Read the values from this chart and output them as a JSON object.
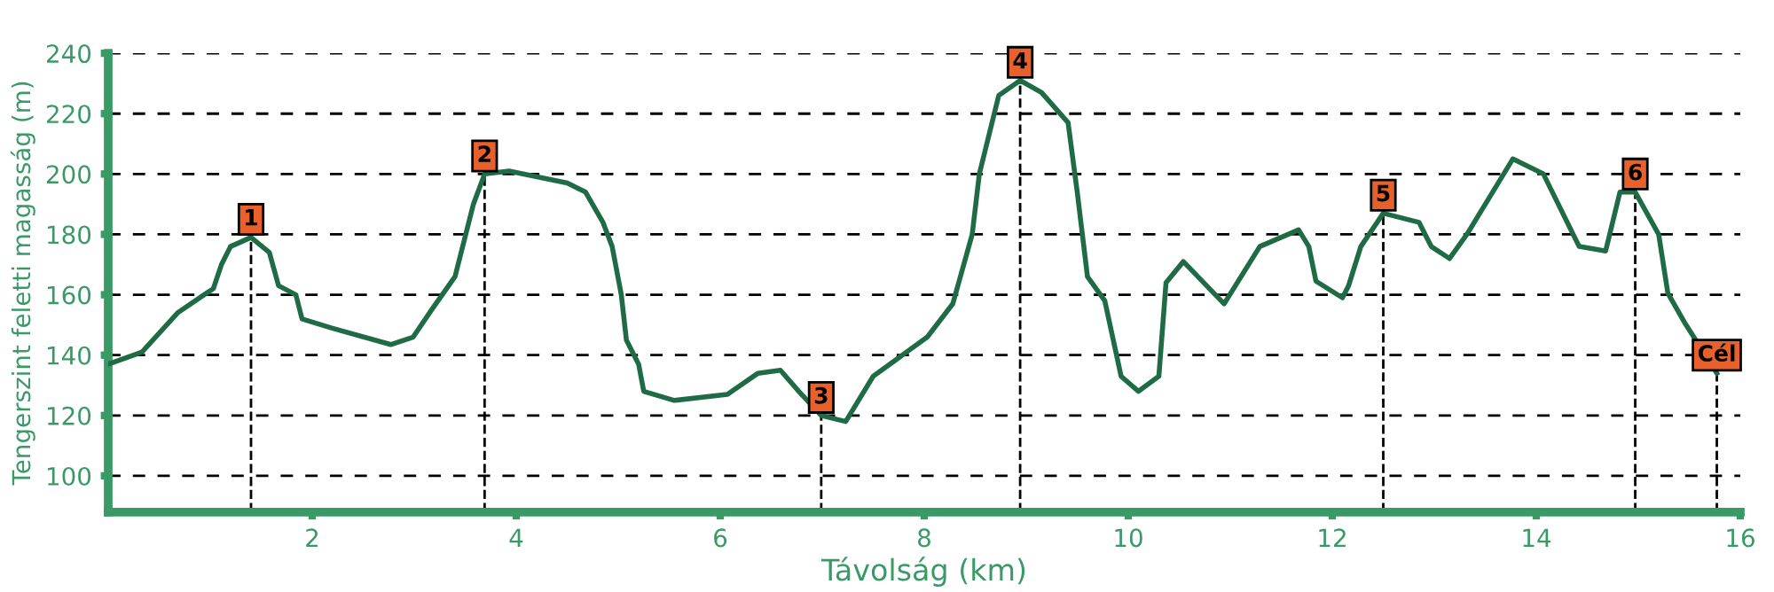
{
  "chart_data": {
    "type": "line",
    "xlabel": "Távolság (km)",
    "ylabel": "Tengerszint feletti magasság (m)",
    "xlim": [
      0,
      16
    ],
    "xticks": [
      2,
      4,
      6,
      8,
      10,
      12,
      14,
      16
    ],
    "ylim": [
      88,
      240
    ],
    "yticks": [
      100,
      120,
      140,
      160,
      180,
      200,
      220,
      240
    ],
    "grid": "y",
    "marker": "none",
    "line_style": "solid",
    "series": [
      {
        "color": "#1f6b45",
        "x": [
          0,
          0.33,
          0.68,
          0.94,
          1.03,
          1.11,
          1.2,
          1.4,
          1.58,
          1.67,
          1.84,
          1.9,
          2.19,
          2.77,
          2.99,
          3.17,
          3.4,
          3.58,
          3.69,
          3.93,
          4.5,
          4.68,
          4.85,
          4.94,
          5.03,
          5.08,
          5.2,
          5.25,
          5.55,
          6.07,
          6.37,
          6.59,
          6.77,
          6.99,
          7.23,
          7.5,
          8.03,
          8.28,
          8.47,
          8.54,
          8.73,
          8.94,
          9.15,
          9.41,
          9.5,
          9.6,
          9.77,
          9.93,
          10.1,
          10.3,
          10.37,
          10.54,
          10.94,
          11.29,
          11.67,
          11.77,
          11.84,
          12.1,
          12.16,
          12.28,
          12.5,
          12.85,
          12.97,
          13.15,
          13.32,
          13.77,
          14.07,
          14.42,
          14.68,
          14.82,
          14.97,
          15.2,
          15.29,
          15.45,
          15.77
        ],
        "values": [
          137,
          141,
          154,
          160,
          162,
          170,
          176,
          179,
          174,
          163,
          160,
          152,
          149,
          143.5,
          146,
          155,
          166,
          190,
          200,
          201,
          197,
          194,
          184,
          176,
          160,
          145,
          137,
          128,
          125,
          127,
          134,
          135,
          128,
          120,
          118,
          133,
          146,
          157,
          180,
          200,
          226,
          231,
          227,
          217,
          194,
          166,
          158,
          133,
          128,
          133,
          164,
          171,
          157,
          176,
          181.5,
          176,
          164.5,
          159,
          163,
          176,
          187,
          184,
          176,
          172,
          180,
          205,
          200,
          176,
          174.5,
          194,
          194,
          180,
          160.5,
          151,
          134
        ]
      }
    ],
    "annotations": [
      {
        "text": "1",
        "x": 1.4,
        "y": 179
      },
      {
        "text": "2",
        "x": 3.69,
        "y": 200
      },
      {
        "text": "3",
        "x": 6.99,
        "y": 120
      },
      {
        "text": "4",
        "x": 8.94,
        "y": 231
      },
      {
        "text": "5",
        "x": 12.5,
        "y": 187
      },
      {
        "text": "6",
        "x": 14.97,
        "y": 194
      },
      {
        "text": "Cél",
        "x": 15.77,
        "y": 134
      }
    ]
  }
}
